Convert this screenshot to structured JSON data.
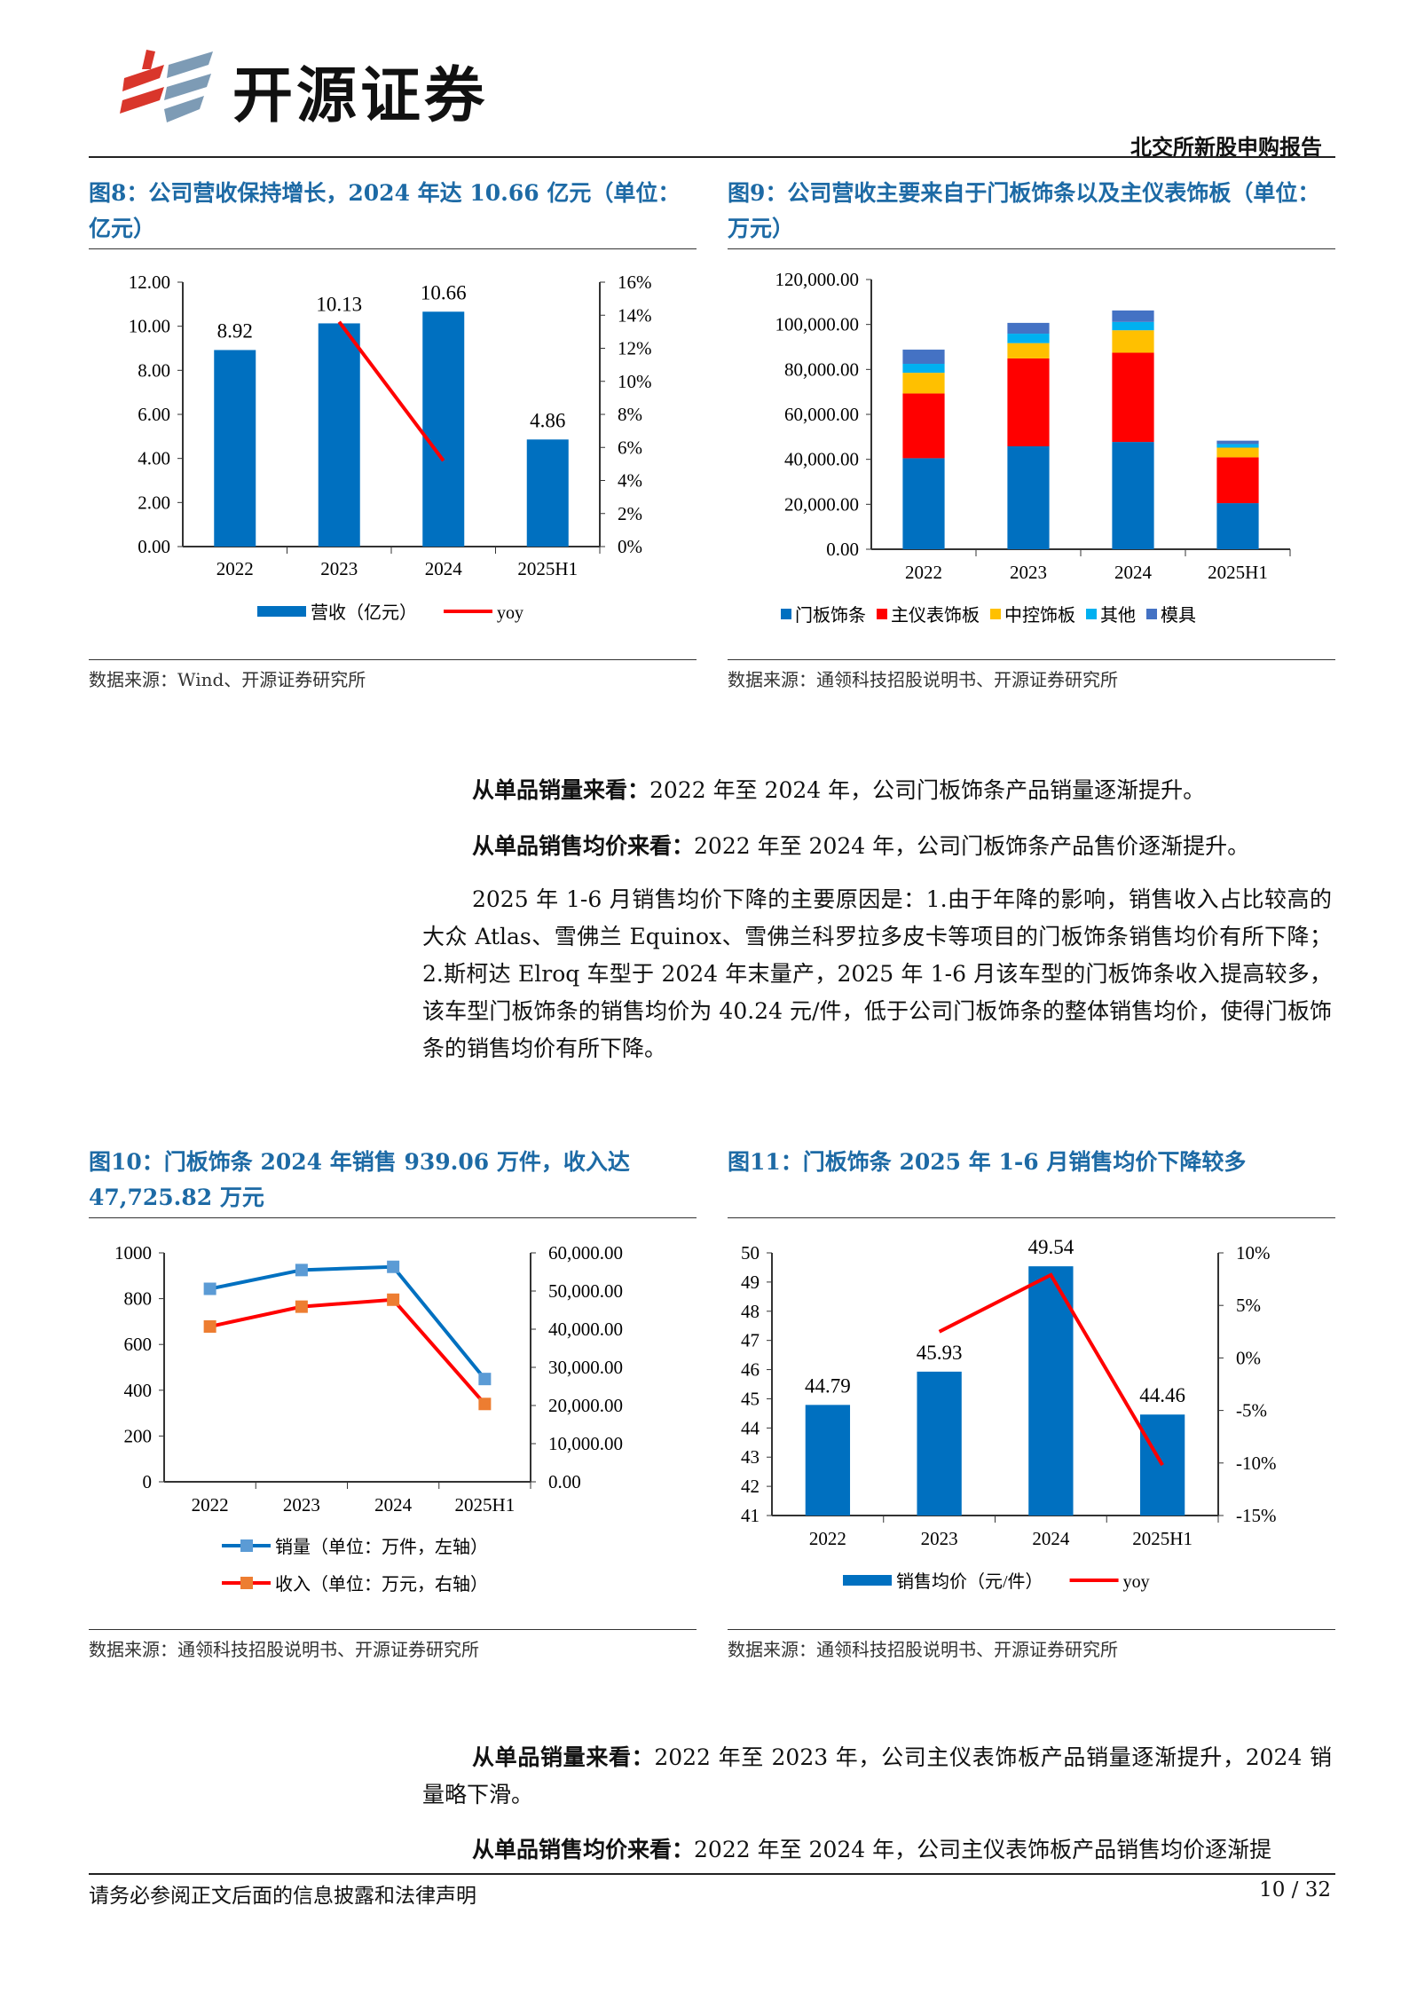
{
  "header": {
    "logo_text": "开源证券",
    "report_type": "北交所新股申购报告"
  },
  "fig8": {
    "title": "图8：公司营收保持增长，2024 年达 10.66 亿元（单位：亿元）",
    "source": "数据来源：Wind、开源证券研究所"
  },
  "fig9": {
    "title": "图9：公司营收主要来自于门板饰条以及主仪表饰板（单位：万元）",
    "source": "数据来源：通领科技招股说明书、开源证券研究所"
  },
  "fig10": {
    "title": "图10：门板饰条 2024 年销售 939.06 万件，收入达 47,725.82 万元",
    "source": "数据来源：通领科技招股说明书、开源证券研究所"
  },
  "fig11": {
    "title": "图11：门板饰条 2025 年 1-6 月销售均价下降较多",
    "source": "数据来源：通领科技招股说明书、开源证券研究所"
  },
  "paragraphs": {
    "p1_lead": "从单品销量来看：",
    "p1": "2022 年至 2024 年，公司门板饰条产品销量逐渐提升。",
    "p2_lead": "从单品销售均价来看：",
    "p2": "2022 年至 2024 年，公司门板饰条产品售价逐渐提升。",
    "p3": "2025 年 1-6 月销售均价下降的主要原因是：1.由于年降的影响，销售收入占比较高的大众 Atlas、雪佛兰 Equinox、雪佛兰科罗拉多皮卡等项目的门板饰条销售均价有所下降；2.斯柯达 Elroq 车型于 2024 年末量产，2025 年 1-6 月该车型的门板饰条收入提高较多，该车型门板饰条的销售均价为 40.24 元/件，低于公司门板饰条的整体销售均价，使得门板饰条的销售均价有所下降。",
    "p4_lead": "从单品销量来看：",
    "p4": "2022 年至 2023 年，公司主仪表饰板产品销量逐渐提升，2024 销量略下滑。",
    "p5_lead": "从单品销售均价来看：",
    "p5": "2022 年至 2024 年，公司主仪表饰板产品销售均价逐渐提"
  },
  "footer": {
    "disclaimer": "请务必参阅正文后面的信息披露和法律声明",
    "page": "10 / 32"
  },
  "chart_data": [
    {
      "id": "fig8",
      "type": "bar+line",
      "categories": [
        "2022",
        "2023",
        "2024",
        "2025H1"
      ],
      "series": [
        {
          "name": "营收（亿元）",
          "kind": "bar",
          "axis": "left",
          "values": [
            8.92,
            10.13,
            10.66,
            4.86
          ],
          "labels": [
            "8.92",
            "10.13",
            "10.66",
            "4.86"
          ],
          "color": "#0070C0"
        },
        {
          "name": "yoy",
          "kind": "line",
          "axis": "right",
          "values": [
            null,
            13.6,
            5.2,
            null
          ],
          "color": "#FF0000"
        }
      ],
      "yleft": {
        "min": 0,
        "max": 12,
        "ticks": [
          "0.00",
          "2.00",
          "4.00",
          "6.00",
          "8.00",
          "10.00",
          "12.00"
        ]
      },
      "yright": {
        "min": 0,
        "max": 16,
        "ticks": [
          "0%",
          "2%",
          "4%",
          "6%",
          "8%",
          "10%",
          "12%",
          "14%",
          "16%"
        ]
      },
      "legend": "bottom"
    },
    {
      "id": "fig9",
      "type": "stacked-bar",
      "categories": [
        "2022",
        "2023",
        "2024",
        "2025H1"
      ],
      "series": [
        {
          "name": "门板饰条",
          "values": [
            40500,
            45800,
            47726,
            20500
          ],
          "color": "#0070C0"
        },
        {
          "name": "主仪表饰板",
          "values": [
            28800,
            39100,
            39700,
            20400
          ],
          "color": "#FF0000"
        },
        {
          "name": "中控饰板",
          "values": [
            9200,
            6800,
            10000,
            4300
          ],
          "color": "#FFC000"
        },
        {
          "name": "其他",
          "values": [
            4000,
            4200,
            3700,
            1600
          ],
          "color": "#00B0F0"
        },
        {
          "name": "模具",
          "values": [
            6300,
            4800,
            5100,
            1500
          ],
          "color": "#4472C4"
        }
      ],
      "yleft": {
        "min": 0,
        "max": 120000,
        "ticks": [
          "0.00",
          "20,000.00",
          "40,000.00",
          "60,000.00",
          "80,000.00",
          "100,000.00",
          "120,000.00"
        ]
      },
      "legend": "bottom"
    },
    {
      "id": "fig10",
      "type": "line",
      "categories": [
        "2022",
        "2023",
        "2024",
        "2025H1"
      ],
      "series": [
        {
          "name": "销量（单位：万件，左轴）",
          "axis": "left",
          "values": [
            843,
            925,
            939.06,
            449
          ],
          "color": "#0070C0",
          "marker": "#5B9BD5"
        },
        {
          "name": "收入（单位：万元，右轴）",
          "axis": "right",
          "values": [
            40700,
            45900,
            47725.82,
            20400
          ],
          "color": "#FF0000",
          "marker": "#ED7D31"
        }
      ],
      "yleft": {
        "min": 0,
        "max": 1000,
        "ticks": [
          "0",
          "200",
          "400",
          "600",
          "800",
          "1000"
        ]
      },
      "yright": {
        "min": 0,
        "max": 60000,
        "ticks": [
          "0.00",
          "10,000.00",
          "20,000.00",
          "30,000.00",
          "40,000.00",
          "50,000.00",
          "60,000.00"
        ]
      },
      "legend": "bottom"
    },
    {
      "id": "fig11",
      "type": "bar+line",
      "categories": [
        "2022",
        "2023",
        "2024",
        "2025H1"
      ],
      "series": [
        {
          "name": "销售均价（元/件）",
          "kind": "bar",
          "axis": "left",
          "values": [
            44.79,
            45.93,
            49.54,
            44.46
          ],
          "labels": [
            "44.79",
            "45.93",
            "49.54",
            "44.46"
          ],
          "color": "#0070C0"
        },
        {
          "name": "yoy",
          "kind": "line",
          "axis": "right",
          "values": [
            null,
            2.5,
            7.9,
            -10.2
          ],
          "color": "#FF0000"
        }
      ],
      "yleft": {
        "min": 41,
        "max": 50,
        "ticks": [
          "41",
          "42",
          "43",
          "44",
          "45",
          "46",
          "47",
          "48",
          "49",
          "50"
        ]
      },
      "yright": {
        "min": -15,
        "max": 10,
        "ticks": [
          "-15%",
          "-10%",
          "-5%",
          "0%",
          "5%",
          "10%"
        ]
      },
      "legend": "bottom"
    }
  ]
}
